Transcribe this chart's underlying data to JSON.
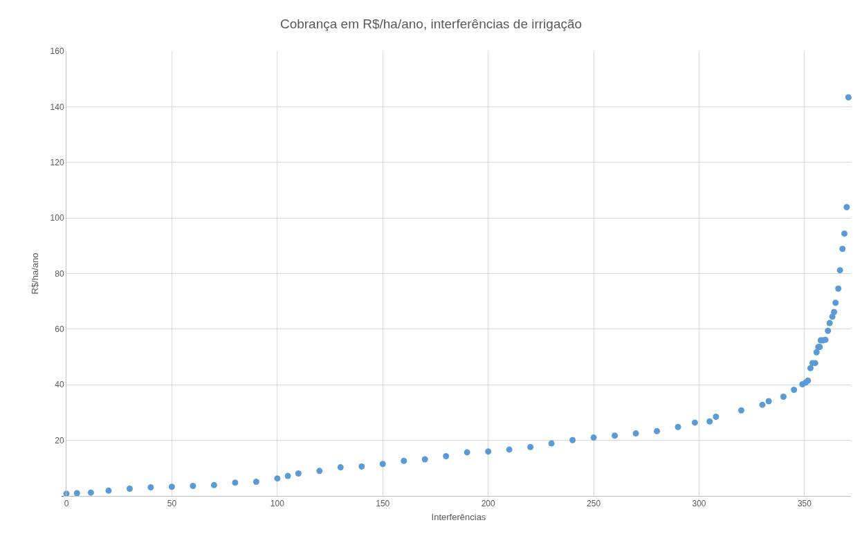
{
  "chart_data": {
    "type": "scatter",
    "title": "Cobrança em R$/ha/ano, interferências de irrigação",
    "xlabel": "Interferências",
    "ylabel": "R$/ha/ano",
    "series": [
      {
        "color": "#5b9bd5",
        "x": [
          0,
          5,
          11.6,
          20,
          30,
          40,
          50,
          60,
          70,
          80,
          90,
          100,
          105,
          110,
          120,
          130,
          140,
          150,
          160,
          170,
          180,
          190,
          200,
          210,
          220,
          230,
          240,
          250,
          260,
          270,
          280,
          290,
          298,
          305,
          308,
          320,
          330,
          333,
          340,
          345,
          349,
          350.5,
          351.6,
          352.8,
          353.8,
          355,
          355.7,
          356.5,
          357.2,
          357.7,
          358.6,
          359.9,
          361.1,
          361.9,
          363.2,
          364,
          364.7,
          366,
          366.8,
          368,
          368.9,
          370,
          370.8
        ],
        "values": [
          0.8,
          1.0,
          1.2,
          1.9,
          2.6,
          3.1,
          3.3,
          3.6,
          3.9,
          4.8,
          5.1,
          6.3,
          7.2,
          8.1,
          9.0,
          10.3,
          10.6,
          11.5,
          12.6,
          13.2,
          14.3,
          15.7,
          16.0,
          16.7,
          17.6,
          18.9,
          20.1,
          21.0,
          21.7,
          22.5,
          23.3,
          24.8,
          26.4,
          26.8,
          28.5,
          30.8,
          32.8,
          34.1,
          35.7,
          38.2,
          40.2,
          40.8,
          41.5,
          46.0,
          47.8,
          47.8,
          51.7,
          53.6,
          53.6,
          56.0,
          56.0,
          56.2,
          59.4,
          62.2,
          64.5,
          66.2,
          69.5,
          74.6,
          81.2,
          88.9,
          94.4,
          103.9,
          143.4
        ]
      }
    ],
    "xlim": [
      0,
      372
    ],
    "xticks": [
      0,
      50,
      100,
      150,
      200,
      250,
      300,
      350
    ],
    "ylim": [
      0,
      160
    ],
    "yticks": [
      {
        "value": 0,
        "label": "-"
      },
      20,
      40,
      60,
      80,
      100,
      120,
      140,
      160
    ],
    "grid": true,
    "marker": "circle"
  }
}
